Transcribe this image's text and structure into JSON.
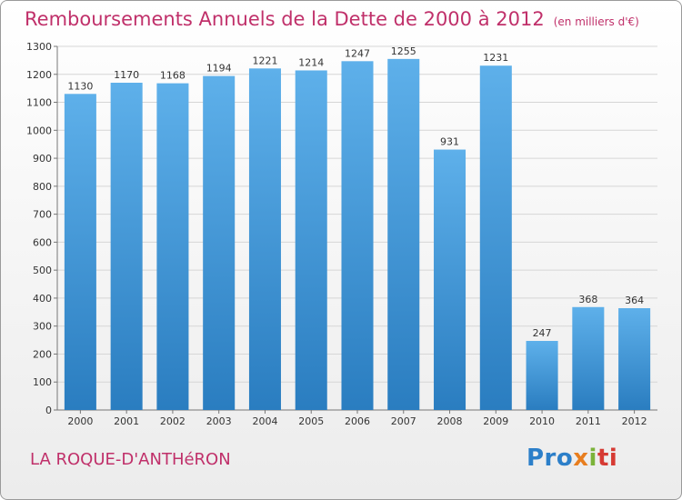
{
  "header": {
    "title": "Remboursements Annuels de la Dette de 2000 à 2012",
    "unit": "(en milliers d'€)"
  },
  "footer": {
    "location": "LA ROQUE-D'ANTHéRON",
    "logo": {
      "text": "Proxiti",
      "parts": [
        "Pro",
        "x",
        "i",
        "ti"
      ]
    }
  },
  "colors": {
    "title": "#c0306a",
    "bar_top": "#5eb0ea",
    "bar_bottom": "#2a7dc0",
    "grid": "#d6d6d6"
  },
  "chart_data": {
    "type": "bar",
    "categories": [
      "2000",
      "2001",
      "2002",
      "2003",
      "2004",
      "2005",
      "2006",
      "2007",
      "2008",
      "2009",
      "2010",
      "2011",
      "2012"
    ],
    "values": [
      1130,
      1170,
      1168,
      1194,
      1221,
      1214,
      1247,
      1255,
      931,
      1231,
      247,
      368,
      364
    ],
    "ylim": [
      0,
      1300
    ],
    "yticks": [
      0,
      100,
      200,
      300,
      400,
      500,
      600,
      700,
      800,
      900,
      1000,
      1100,
      1200,
      1300
    ],
    "grid": true,
    "xlabel": "",
    "ylabel": ""
  }
}
